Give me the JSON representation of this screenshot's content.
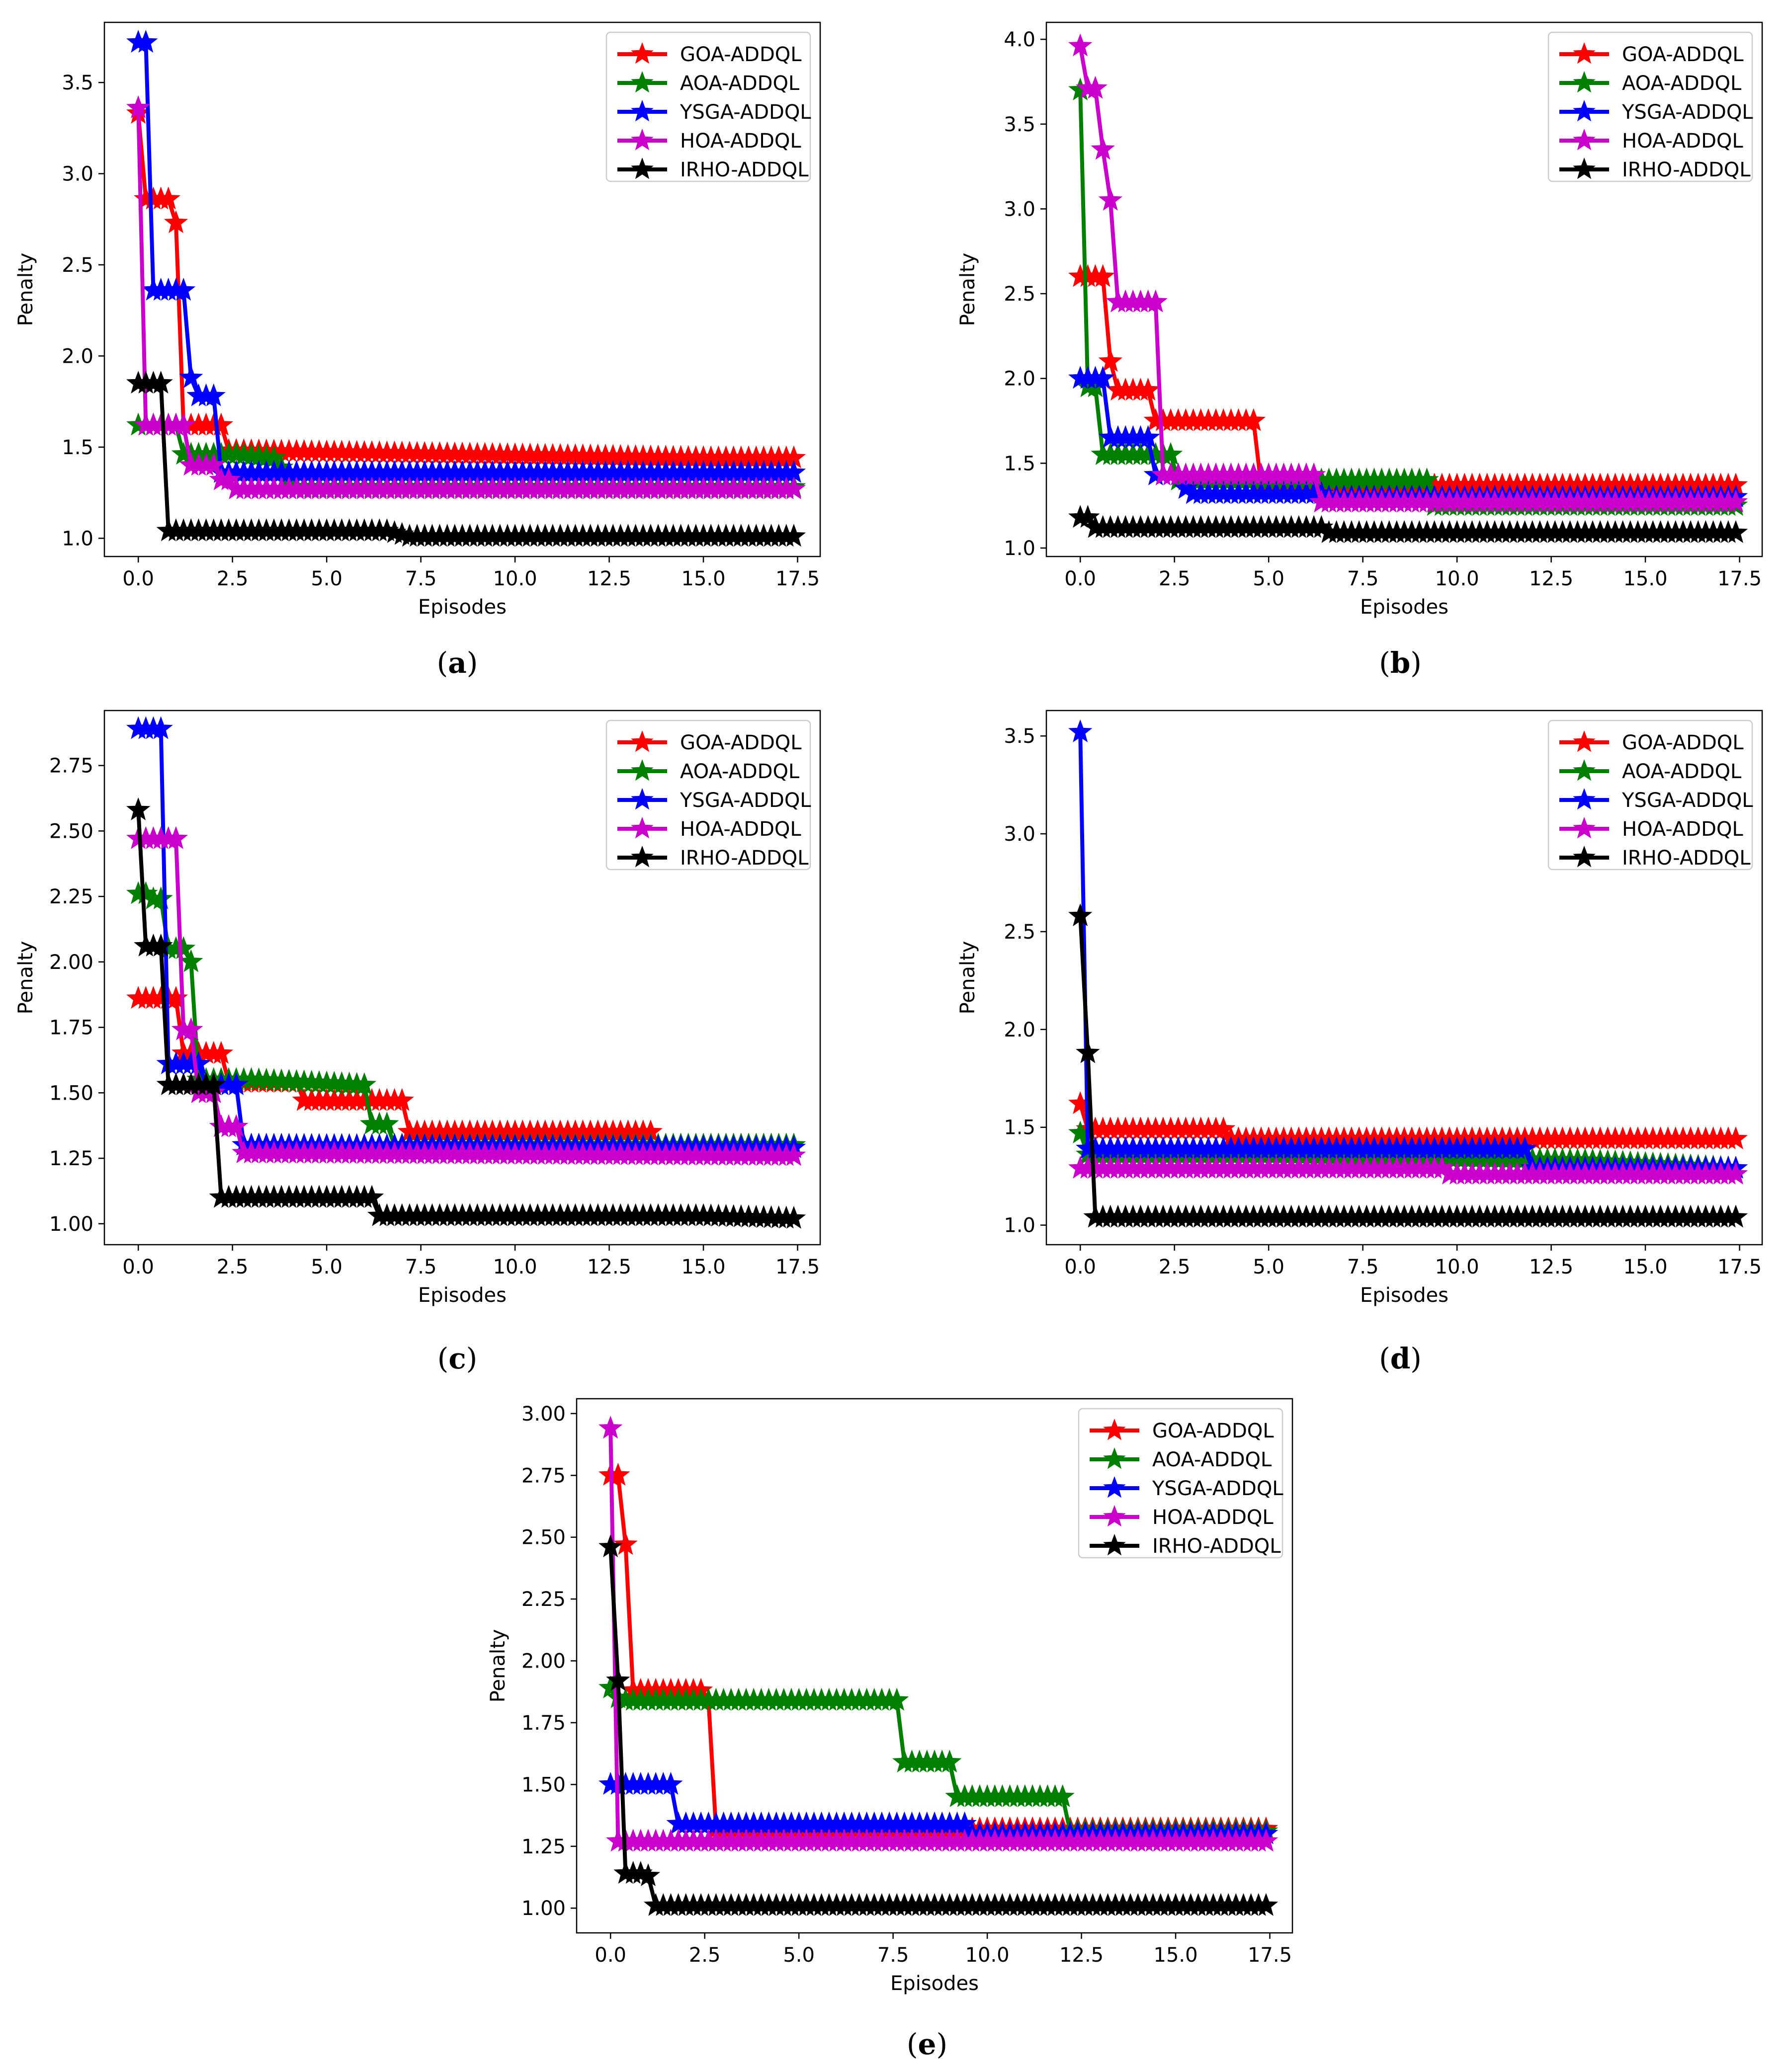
{
  "colors": {
    "GOA-ADDQL": "#ff0000",
    "AOA-ADDQL": "#008000",
    "YSGA-ADDQL": "#0000ff",
    "HOA-ADDQL": "#cc00cc",
    "IRHO-ADDQL": "#000000"
  },
  "captions": {
    "a": "a",
    "b": "b",
    "c": "c",
    "d": "d",
    "e": "e"
  },
  "chart_data": [
    {
      "id": "a",
      "type": "line",
      "title": "",
      "xlabel": "Episodes",
      "ylabel": "Penalty",
      "xlim": [
        -0.9,
        18.1
      ],
      "ylim": [
        0.9,
        3.83
      ],
      "xticks": [
        0,
        2.5,
        5,
        7.5,
        10,
        12.5,
        15,
        17.5
      ],
      "xticklabels": [
        "0.0",
        "2.5",
        "5.0",
        "7.5",
        "10.0",
        "12.5",
        "15.0",
        "17.5"
      ],
      "yticks": [
        1.0,
        1.5,
        2.0,
        2.5,
        3.0,
        3.5
      ],
      "yticklabels": [
        "1.0",
        "1.5",
        "2.0",
        "2.5",
        "3.0",
        "3.5"
      ],
      "legend_position": "top-right",
      "series": [
        {
          "name": "GOA-ADDQL",
          "x": [
            0,
            0.2,
            0.4,
            0.6,
            0.8,
            1,
            1.2,
            1.4,
            1.6,
            1.8,
            2,
            2.2,
            2.4,
            2.6,
            15.2,
            17.4
          ],
          "y": [
            3.33,
            2.86,
            2.86,
            2.86,
            2.86,
            2.73,
            1.62,
            1.62,
            1.62,
            1.62,
            1.62,
            1.62,
            1.48,
            1.48,
            1.44,
            1.44
          ]
        },
        {
          "name": "AOA-ADDQL",
          "x": [
            0,
            0.2,
            0.4,
            0.6,
            0.8,
            1,
            1.2,
            1.4,
            1.6,
            1.8,
            2,
            2.2,
            2.4,
            2.6,
            3.6,
            4.2,
            17.4
          ],
          "y": [
            1.62,
            1.62,
            1.62,
            1.62,
            1.62,
            1.62,
            1.46,
            1.46,
            1.46,
            1.46,
            1.46,
            1.46,
            1.46,
            1.46,
            1.44,
            1.28,
            1.28
          ]
        },
        {
          "name": "YSGA-ADDQL",
          "x": [
            0,
            0.2,
            0.4,
            0.6,
            0.8,
            1,
            1.2,
            1.4,
            1.6,
            1.8,
            2,
            2.2,
            2.4,
            17.4
          ],
          "y": [
            3.72,
            3.72,
            2.36,
            2.36,
            2.36,
            2.36,
            2.36,
            1.88,
            1.78,
            1.78,
            1.78,
            1.36,
            1.36,
            1.36
          ]
        },
        {
          "name": "HOA-ADDQL",
          "x": [
            0,
            0.2,
            0.4,
            0.6,
            0.8,
            1,
            1.2,
            1.4,
            1.6,
            1.8,
            2,
            2.2,
            2.4,
            2.6,
            17.4
          ],
          "y": [
            3.36,
            1.62,
            1.62,
            1.62,
            1.62,
            1.62,
            1.62,
            1.4,
            1.4,
            1.4,
            1.4,
            1.32,
            1.32,
            1.27,
            1.27
          ]
        },
        {
          "name": "IRHO-ADDQL",
          "x": [
            0,
            0.2,
            0.4,
            0.6,
            0.8,
            6.6,
            7.2,
            17.4
          ],
          "y": [
            1.85,
            1.85,
            1.85,
            1.85,
            1.04,
            1.04,
            1.01,
            1.01
          ]
        }
      ]
    },
    {
      "id": "b",
      "type": "line",
      "title": "",
      "xlabel": "Episodes",
      "ylabel": "Penalty",
      "xlim": [
        -0.9,
        18.1
      ],
      "ylim": [
        0.95,
        4.1
      ],
      "xticks": [
        0,
        2.5,
        5,
        7.5,
        10,
        12.5,
        15,
        17.5
      ],
      "xticklabels": [
        "0.0",
        "2.5",
        "5.0",
        "7.5",
        "10.0",
        "12.5",
        "15.0",
        "17.5"
      ],
      "yticks": [
        1.0,
        1.5,
        2.0,
        2.5,
        3.0,
        3.5,
        4.0
      ],
      "yticklabels": [
        "1.0",
        "1.5",
        "2.0",
        "2.5",
        "3.0",
        "3.5",
        "4.0"
      ],
      "legend_position": "top-right",
      "series": [
        {
          "name": "GOA-ADDQL",
          "x": [
            0,
            0.2,
            0.4,
            0.6,
            0.8,
            1,
            1.2,
            1.4,
            1.6,
            1.8,
            2,
            2.2,
            2.4,
            4.6,
            4.8,
            17.4
          ],
          "y": [
            2.6,
            2.6,
            2.6,
            2.6,
            2.1,
            1.93,
            1.93,
            1.93,
            1.93,
            1.93,
            1.75,
            1.75,
            1.75,
            1.75,
            1.37,
            1.37
          ]
        },
        {
          "name": "AOA-ADDQL",
          "x": [
            0,
            0.2,
            0.4,
            0.6,
            0.8,
            1,
            1.2,
            1.4,
            1.6,
            1.8,
            2,
            2.2,
            2.4,
            2.6,
            9.2,
            9.4,
            13.2,
            13.4,
            17.4
          ],
          "y": [
            3.7,
            1.95,
            1.95,
            1.55,
            1.55,
            1.55,
            1.55,
            1.55,
            1.55,
            1.55,
            1.55,
            1.55,
            1.55,
            1.4,
            1.4,
            1.25,
            1.25,
            1.25,
            1.25
          ]
        },
        {
          "name": "YSGA-ADDQL",
          "x": [
            0,
            0.2,
            0.4,
            0.6,
            0.8,
            1,
            1.2,
            1.4,
            1.6,
            1.8,
            2,
            2.2,
            2.4,
            2.6,
            2.8,
            3,
            6.4,
            6.6,
            17.4
          ],
          "y": [
            2.0,
            2.0,
            2.0,
            2.0,
            1.65,
            1.65,
            1.65,
            1.65,
            1.65,
            1.65,
            1.43,
            1.43,
            1.43,
            1.43,
            1.35,
            1.32,
            1.32,
            1.3,
            1.3
          ]
        },
        {
          "name": "HOA-ADDQL",
          "x": [
            0,
            0.2,
            0.4,
            0.6,
            0.8,
            1,
            1.2,
            1.4,
            1.6,
            1.8,
            2,
            2.2,
            2.4,
            2.6,
            6.2,
            6.4,
            17.4
          ],
          "y": [
            3.96,
            3.71,
            3.71,
            3.35,
            3.05,
            2.45,
            2.45,
            2.45,
            2.45,
            2.45,
            2.45,
            1.43,
            1.43,
            1.43,
            1.43,
            1.27,
            1.27
          ]
        },
        {
          "name": "IRHO-ADDQL",
          "x": [
            0,
            0.2,
            0.4,
            6.4,
            6.6,
            17.4
          ],
          "y": [
            1.18,
            1.18,
            1.12,
            1.12,
            1.09,
            1.09
          ]
        }
      ]
    },
    {
      "id": "c",
      "type": "line",
      "title": "",
      "xlabel": "Episodes",
      "ylabel": "Penalty",
      "xlim": [
        -0.9,
        18.1
      ],
      "ylim": [
        0.92,
        2.96
      ],
      "xticks": [
        0,
        2.5,
        5,
        7.5,
        10,
        12.5,
        15,
        17.5
      ],
      "xticklabels": [
        "0.0",
        "2.5",
        "5.0",
        "7.5",
        "10.0",
        "12.5",
        "15.0",
        "17.5"
      ],
      "yticks": [
        1.0,
        1.25,
        1.5,
        1.75,
        2.0,
        2.25,
        2.5,
        2.75
      ],
      "yticklabels": [
        "1.00",
        "1.25",
        "1.50",
        "1.75",
        "2.00",
        "2.25",
        "2.50",
        "2.75"
      ],
      "legend_position": "top-right",
      "series": [
        {
          "name": "GOA-ADDQL",
          "x": [
            0,
            0.2,
            0.4,
            0.6,
            0.8,
            1,
            1.2,
            1.4,
            1.6,
            1.8,
            2,
            2.2,
            2.4,
            4.2,
            4.4,
            7.0,
            7.2,
            13.6
          ],
          "y": [
            1.86,
            1.86,
            1.86,
            1.86,
            1.86,
            1.86,
            1.65,
            1.65,
            1.65,
            1.65,
            1.65,
            1.65,
            1.54,
            1.54,
            1.47,
            1.47,
            1.35,
            1.35
          ]
        },
        {
          "name": "AOA-ADDQL",
          "x": [
            0,
            0.2,
            0.4,
            0.6,
            0.8,
            1,
            1.2,
            1.4,
            1.6,
            1.8,
            2,
            2.2,
            2.4,
            2.6,
            2.8,
            3,
            6.0,
            6.2,
            6.4,
            6.6,
            6.8,
            17.4
          ],
          "y": [
            2.26,
            2.26,
            2.24,
            2.24,
            2.05,
            2.05,
            2.05,
            2.0,
            1.55,
            1.55,
            1.55,
            1.55,
            1.55,
            1.55,
            1.55,
            1.55,
            1.53,
            1.38,
            1.38,
            1.38,
            1.3,
            1.3
          ]
        },
        {
          "name": "YSGA-ADDQL",
          "x": [
            0,
            0.2,
            0.4,
            0.6,
            0.8,
            1,
            1.2,
            1.4,
            1.6,
            1.8,
            2,
            2.2,
            2.4,
            2.6,
            2.8,
            17.4
          ],
          "y": [
            2.89,
            2.89,
            2.89,
            2.89,
            1.61,
            1.61,
            1.61,
            1.61,
            1.61,
            1.53,
            1.53,
            1.53,
            1.53,
            1.53,
            1.3,
            1.29
          ]
        },
        {
          "name": "HOA-ADDQL",
          "x": [
            0,
            0.2,
            0.4,
            0.6,
            0.8,
            1,
            1.2,
            1.4,
            1.6,
            1.8,
            2,
            2.2,
            2.4,
            2.6,
            2.8,
            17.4
          ],
          "y": [
            2.47,
            2.47,
            2.47,
            2.47,
            2.47,
            2.47,
            1.74,
            1.74,
            1.5,
            1.5,
            1.5,
            1.37,
            1.37,
            1.37,
            1.27,
            1.26
          ]
        },
        {
          "name": "IRHO-ADDQL",
          "x": [
            0,
            0.2,
            0.4,
            0.6,
            0.8,
            1,
            1.2,
            1.4,
            1.6,
            1.8,
            2,
            2.2,
            6.2,
            6.4,
            15.0,
            17.4
          ],
          "y": [
            2.58,
            2.06,
            2.06,
            2.06,
            1.53,
            1.53,
            1.53,
            1.53,
            1.53,
            1.53,
            1.53,
            1.1,
            1.1,
            1.03,
            1.03,
            1.02
          ]
        }
      ]
    },
    {
      "id": "d",
      "type": "line",
      "title": "",
      "xlabel": "Episodes",
      "ylabel": "Penalty",
      "xlim": [
        -0.9,
        18.1
      ],
      "ylim": [
        0.9,
        3.63
      ],
      "xticks": [
        0,
        2.5,
        5,
        7.5,
        10,
        12.5,
        15,
        17.5
      ],
      "xticklabels": [
        "0.0",
        "2.5",
        "5.0",
        "7.5",
        "10.0",
        "12.5",
        "15.0",
        "17.5"
      ],
      "yticks": [
        1.0,
        1.5,
        2.0,
        2.5,
        3.0,
        3.5
      ],
      "yticklabels": [
        "1.0",
        "1.5",
        "2.0",
        "2.5",
        "3.0",
        "3.5"
      ],
      "legend_position": "top-right",
      "series": [
        {
          "name": "GOA-ADDQL",
          "x": [
            0,
            0.2,
            3.8,
            4.0,
            17.4
          ],
          "y": [
            1.62,
            1.49,
            1.49,
            1.44,
            1.44
          ]
        },
        {
          "name": "AOA-ADDQL",
          "x": [
            0,
            0.2,
            5.0,
            13.4,
            17.4
          ],
          "y": [
            1.47,
            1.36,
            1.36,
            1.33,
            1.29
          ]
        },
        {
          "name": "YSGA-ADDQL",
          "x": [
            0,
            0.2,
            11.8,
            12.0,
            17.4
          ],
          "y": [
            3.52,
            1.39,
            1.39,
            1.29,
            1.29
          ]
        },
        {
          "name": "HOA-ADDQL",
          "x": [
            0,
            0.2,
            9.6,
            9.8,
            17.4
          ],
          "y": [
            1.29,
            1.29,
            1.29,
            1.26,
            1.26
          ]
        },
        {
          "name": "IRHO-ADDQL",
          "x": [
            0,
            0.2,
            0.4,
            17.4
          ],
          "y": [
            2.58,
            1.88,
            1.04,
            1.04
          ]
        }
      ]
    },
    {
      "id": "e",
      "type": "line",
      "title": "",
      "xlabel": "Episodes",
      "ylabel": "Penalty",
      "xlim": [
        -0.9,
        18.1
      ],
      "ylim": [
        0.9,
        3.06
      ],
      "xticks": [
        0,
        2.5,
        5,
        7.5,
        10,
        12.5,
        15,
        17.5
      ],
      "xticklabels": [
        "0.0",
        "2.5",
        "5.0",
        "7.5",
        "10.0",
        "12.5",
        "15.0",
        "17.5"
      ],
      "yticks": [
        1.0,
        1.25,
        1.5,
        1.75,
        2.0,
        2.25,
        2.5,
        2.75,
        3.0
      ],
      "yticklabels": [
        "1.00",
        "1.25",
        "1.50",
        "1.75",
        "2.00",
        "2.25",
        "2.50",
        "2.75",
        "3.00"
      ],
      "legend_position": "top-right",
      "series": [
        {
          "name": "GOA-ADDQL",
          "x": [
            0,
            0.2,
            0.4,
            0.6,
            0.8,
            2.4,
            2.6,
            2.8,
            17.4
          ],
          "y": [
            2.75,
            2.75,
            2.47,
            1.88,
            1.88,
            1.88,
            1.84,
            1.32,
            1.32
          ]
        },
        {
          "name": "AOA-ADDQL",
          "x": [
            0,
            0.2,
            0.4,
            7.4,
            7.6,
            7.8,
            8.8,
            9.0,
            9.2,
            11.8,
            12.0,
            12.2,
            17.4
          ],
          "y": [
            1.89,
            1.85,
            1.84,
            1.84,
            1.84,
            1.59,
            1.59,
            1.59,
            1.45,
            1.45,
            1.45,
            1.31,
            1.31
          ]
        },
        {
          "name": "YSGA-ADDQL",
          "x": [
            0,
            0.2,
            1.6,
            1.8,
            9.4,
            9.6,
            17.4
          ],
          "y": [
            1.5,
            1.5,
            1.5,
            1.34,
            1.34,
            1.3,
            1.3
          ]
        },
        {
          "name": "HOA-ADDQL",
          "x": [
            0,
            0.2,
            17.4
          ],
          "y": [
            2.94,
            1.27,
            1.27
          ]
        },
        {
          "name": "IRHO-ADDQL",
          "x": [
            0,
            0.2,
            0.4,
            0.6,
            0.8,
            1.0,
            1.2,
            17.4
          ],
          "y": [
            2.46,
            1.92,
            1.14,
            1.14,
            1.14,
            1.13,
            1.01,
            1.01
          ]
        }
      ]
    }
  ]
}
